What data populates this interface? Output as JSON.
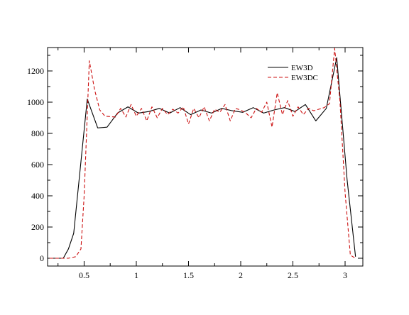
{
  "chart_data": {
    "type": "line",
    "title": "",
    "xlabel": "",
    "ylabel": "",
    "xlim": [
      0.15,
      3.17
    ],
    "ylim": [
      -50,
      1350
    ],
    "grid": false,
    "legend_position": "top-right",
    "x_ticks": [
      0.5,
      1,
      1.5,
      2,
      2.5,
      3
    ],
    "x_tick_labels": [
      "0.5",
      "1",
      "1.5",
      "2",
      "2.5",
      "3"
    ],
    "y_ticks": [
      0,
      200,
      400,
      600,
      800,
      1000,
      1200
    ],
    "y_tick_labels": [
      "0",
      "200",
      "400",
      "600",
      "800",
      "1000",
      "1200"
    ],
    "series": [
      {
        "name": "EW3D",
        "color": "#000000",
        "style": "solid",
        "x": [
          0.17,
          0.3,
          0.35,
          0.4,
          0.53,
          0.63,
          0.72,
          0.82,
          0.92,
          1.02,
          1.12,
          1.22,
          1.32,
          1.42,
          1.52,
          1.62,
          1.72,
          1.82,
          1.92,
          2.02,
          2.12,
          2.22,
          2.32,
          2.42,
          2.52,
          2.62,
          2.72,
          2.82,
          2.92,
          3.02,
          3.1
        ],
        "y": [
          0,
          0,
          60,
          160,
          1020,
          835,
          840,
          930,
          970,
          930,
          940,
          960,
          930,
          965,
          920,
          950,
          930,
          960,
          945,
          935,
          965,
          930,
          950,
          965,
          940,
          985,
          880,
          960,
          1285,
          500,
          10
        ]
      },
      {
        "name": "EW3DC",
        "color": "#cc1111",
        "style": "dashed",
        "x": [
          0.17,
          0.35,
          0.42,
          0.47,
          0.5,
          0.55,
          0.6,
          0.65,
          0.7,
          0.8,
          0.85,
          0.9,
          0.95,
          1.0,
          1.05,
          1.1,
          1.15,
          1.2,
          1.25,
          1.3,
          1.35,
          1.4,
          1.45,
          1.5,
          1.55,
          1.6,
          1.65,
          1.7,
          1.75,
          1.8,
          1.85,
          1.9,
          1.95,
          2.0,
          2.05,
          2.1,
          2.15,
          2.2,
          2.25,
          2.3,
          2.35,
          2.4,
          2.45,
          2.5,
          2.55,
          2.6,
          2.65,
          2.7,
          2.75,
          2.8,
          2.85,
          2.9,
          2.95,
          3.0,
          3.05,
          3.1
        ],
        "y": [
          0,
          0,
          10,
          60,
          400,
          1265,
          1080,
          950,
          910,
          905,
          960,
          905,
          985,
          910,
          960,
          880,
          970,
          900,
          960,
          920,
          955,
          930,
          970,
          860,
          960,
          900,
          970,
          880,
          955,
          935,
          985,
          880,
          960,
          950,
          930,
          900,
          960,
          935,
          1000,
          840,
          1060,
          920,
          1010,
          910,
          970,
          920,
          960,
          945,
          955,
          965,
          990,
          1345,
          1010,
          420,
          20,
          0
        ]
      }
    ]
  }
}
